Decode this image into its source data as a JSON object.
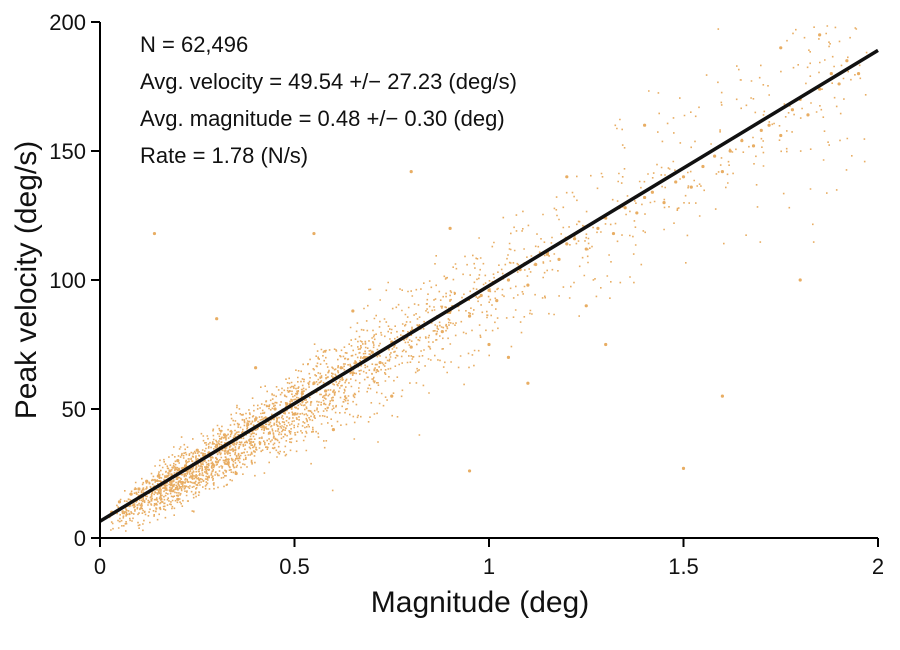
{
  "chart_data": {
    "type": "scatter",
    "xlabel": "Magnitude (deg)",
    "ylabel": "Peak velocity (deg/s)",
    "xlim": [
      0,
      2
    ],
    "ylim": [
      0,
      200
    ],
    "xticks": [
      "0",
      "0.5",
      "1",
      "1.5",
      "2"
    ],
    "yticks": [
      "0",
      "50",
      "100",
      "150",
      "200"
    ],
    "grid": false,
    "annotations": [
      "N = 62,496",
      "Avg. velocity = 49.54 +/− 27.23 (deg/s)",
      "Avg. magnitude = 0.48 +/− 0.30 (deg)",
      "Rate = 1.78 (N/s)"
    ],
    "fit_line": {
      "x": [
        0,
        2
      ],
      "y": [
        6.5,
        189
      ]
    },
    "series": [
      {
        "values_description_free": true,
        "color": "#e8ad63",
        "points": [
          [
            0.03,
            10
          ],
          [
            0.05,
            14
          ],
          [
            0.08,
            17
          ],
          [
            0.1,
            19
          ],
          [
            0.12,
            22
          ],
          [
            0.15,
            24
          ],
          [
            0.18,
            26
          ],
          [
            0.2,
            30
          ],
          [
            0.22,
            28
          ],
          [
            0.25,
            34
          ],
          [
            0.28,
            33
          ],
          [
            0.3,
            36
          ],
          [
            0.32,
            40
          ],
          [
            0.35,
            38
          ],
          [
            0.38,
            44
          ],
          [
            0.4,
            46
          ],
          [
            0.42,
            43
          ],
          [
            0.45,
            50
          ],
          [
            0.48,
            52
          ],
          [
            0.5,
            48
          ],
          [
            0.52,
            56
          ],
          [
            0.55,
            60
          ],
          [
            0.58,
            57
          ],
          [
            0.6,
            62
          ],
          [
            0.62,
            66
          ],
          [
            0.65,
            64
          ],
          [
            0.68,
            70
          ],
          [
            0.7,
            72
          ],
          [
            0.72,
            68
          ],
          [
            0.75,
            76
          ],
          [
            0.78,
            78
          ],
          [
            0.8,
            74
          ],
          [
            0.82,
            82
          ],
          [
            0.85,
            84
          ],
          [
            0.88,
            80
          ],
          [
            0.9,
            88
          ],
          [
            0.92,
            90
          ],
          [
            0.95,
            86
          ],
          [
            0.98,
            94
          ],
          [
            1.0,
            96
          ],
          [
            1.02,
            92
          ],
          [
            1.05,
            100
          ],
          [
            1.08,
            104
          ],
          [
            1.1,
            98
          ],
          [
            1.12,
            106
          ],
          [
            1.15,
            110
          ],
          [
            1.18,
            108
          ],
          [
            1.2,
            114
          ],
          [
            1.22,
            116
          ],
          [
            1.25,
            112
          ],
          [
            1.28,
            120
          ],
          [
            1.3,
            124
          ],
          [
            1.32,
            118
          ],
          [
            1.35,
            128
          ],
          [
            1.38,
            126
          ],
          [
            1.4,
            132
          ],
          [
            1.42,
            134
          ],
          [
            1.45,
            130
          ],
          [
            1.48,
            138
          ],
          [
            1.5,
            140
          ],
          [
            1.52,
            136
          ],
          [
            1.55,
            144
          ],
          [
            1.58,
            148
          ],
          [
            1.6,
            142
          ],
          [
            1.62,
            150
          ],
          [
            1.65,
            154
          ],
          [
            1.68,
            152
          ],
          [
            1.7,
            158
          ],
          [
            1.72,
            160
          ],
          [
            1.75,
            156
          ],
          [
            1.78,
            166
          ],
          [
            1.8,
            170
          ],
          [
            1.82,
            164
          ],
          [
            1.85,
            174
          ],
          [
            1.88,
            180
          ],
          [
            1.9,
            176
          ],
          [
            1.92,
            185
          ],
          [
            1.95,
            180
          ],
          [
            0.14,
            118
          ],
          [
            0.55,
            118
          ],
          [
            0.3,
            85
          ],
          [
            0.95,
            26
          ],
          [
            1.5,
            27
          ],
          [
            1.8,
            100
          ],
          [
            1.6,
            55
          ],
          [
            0.8,
            142
          ],
          [
            0.65,
            88
          ],
          [
            0.4,
            66
          ],
          [
            1.1,
            60
          ],
          [
            1.3,
            75
          ],
          [
            1.85,
            195
          ],
          [
            1.75,
            190
          ],
          [
            1.4,
            160
          ],
          [
            1.2,
            140
          ],
          [
            0.9,
            120
          ],
          [
            1.0,
            75
          ],
          [
            0.2,
            15
          ],
          [
            0.35,
            25
          ],
          [
            0.6,
            42
          ],
          [
            0.75,
            55
          ],
          [
            1.05,
            70
          ],
          [
            1.25,
            90
          ]
        ]
      }
    ]
  }
}
